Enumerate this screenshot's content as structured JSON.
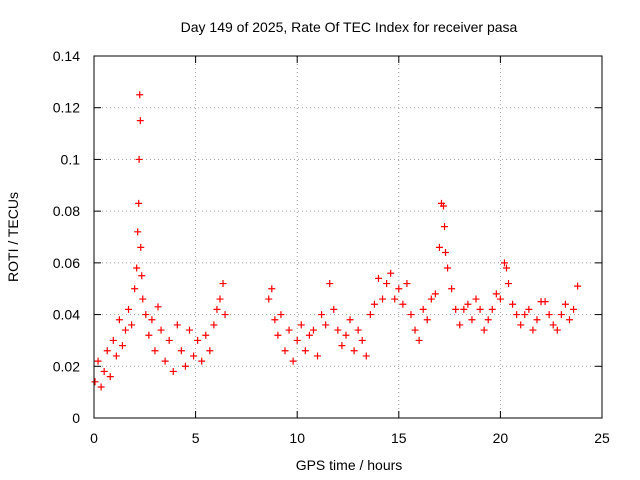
{
  "chart_data": {
    "type": "scatter",
    "title": "Day 149 of 2025, Rate Of TEC Index for receiver pasa",
    "xlabel": "GPS time / hours",
    "ylabel": "ROTI / TECUs",
    "xlim": [
      0,
      25
    ],
    "ylim": [
      0,
      0.14
    ],
    "xticks": [
      0,
      5,
      10,
      15,
      20,
      25
    ],
    "xtick_labels": [
      "0",
      "5",
      "10",
      "15",
      "20",
      "25"
    ],
    "yticks": [
      0,
      0.02,
      0.04,
      0.06,
      0.08,
      0.1,
      0.12,
      0.14
    ],
    "ytick_labels": [
      "0",
      "0.02",
      "0.04",
      "0.06",
      "0.08",
      "0.1",
      "0.12",
      "0.14"
    ],
    "grid": true,
    "marker": "plus",
    "marker_color": "#ff0000",
    "series": [
      {
        "name": "ROTI",
        "color": "#ff0000",
        "x": [
          0.05,
          0.2,
          0.35,
          0.5,
          0.65,
          0.8,
          0.95,
          1.1,
          1.25,
          1.4,
          1.55,
          1.7,
          1.85,
          2.0,
          2.1,
          2.15,
          2.2,
          2.22,
          2.25,
          2.28,
          2.3,
          2.35,
          2.4,
          2.55,
          2.7,
          2.85,
          3.0,
          3.15,
          3.3,
          3.5,
          3.7,
          3.9,
          4.1,
          4.3,
          4.5,
          4.7,
          4.9,
          5.1,
          5.3,
          5.5,
          5.7,
          5.9,
          6.05,
          6.2,
          6.35,
          6.45,
          8.6,
          8.75,
          8.9,
          9.05,
          9.2,
          9.4,
          9.6,
          9.8,
          10.0,
          10.2,
          10.4,
          10.6,
          10.8,
          11.0,
          11.2,
          11.4,
          11.6,
          11.8,
          12.0,
          12.2,
          12.4,
          12.6,
          12.8,
          13.0,
          13.2,
          13.4,
          13.6,
          13.8,
          14.0,
          14.2,
          14.4,
          14.6,
          14.8,
          15.0,
          15.2,
          15.4,
          15.6,
          15.8,
          16.0,
          16.2,
          16.4,
          16.6,
          16.8,
          17.0,
          17.1,
          17.2,
          17.25,
          17.3,
          17.4,
          17.6,
          17.8,
          18.0,
          18.2,
          18.4,
          18.6,
          18.8,
          19.0,
          19.2,
          19.4,
          19.6,
          19.8,
          20.0,
          20.2,
          20.3,
          20.4,
          20.6,
          20.8,
          21.0,
          21.2,
          21.4,
          21.6,
          21.8,
          22.0,
          22.2,
          22.4,
          22.6,
          22.8,
          23.0,
          23.2,
          23.4,
          23.6,
          23.8
        ],
        "y": [
          0.014,
          0.022,
          0.012,
          0.018,
          0.026,
          0.016,
          0.03,
          0.024,
          0.038,
          0.028,
          0.034,
          0.042,
          0.036,
          0.05,
          0.058,
          0.072,
          0.083,
          0.1,
          0.125,
          0.115,
          0.066,
          0.055,
          0.046,
          0.04,
          0.032,
          0.038,
          0.026,
          0.043,
          0.034,
          0.022,
          0.03,
          0.018,
          0.036,
          0.026,
          0.02,
          0.034,
          0.024,
          0.03,
          0.022,
          0.032,
          0.026,
          0.036,
          0.042,
          0.046,
          0.052,
          0.04,
          0.046,
          0.05,
          0.038,
          0.032,
          0.04,
          0.026,
          0.034,
          0.022,
          0.03,
          0.036,
          0.026,
          0.032,
          0.034,
          0.024,
          0.04,
          0.036,
          0.052,
          0.042,
          0.034,
          0.028,
          0.032,
          0.038,
          0.026,
          0.034,
          0.03,
          0.024,
          0.04,
          0.044,
          0.054,
          0.046,
          0.052,
          0.056,
          0.046,
          0.05,
          0.044,
          0.052,
          0.04,
          0.034,
          0.03,
          0.042,
          0.038,
          0.046,
          0.048,
          0.066,
          0.083,
          0.082,
          0.074,
          0.064,
          0.058,
          0.05,
          0.042,
          0.036,
          0.042,
          0.044,
          0.038,
          0.046,
          0.042,
          0.034,
          0.038,
          0.042,
          0.048,
          0.046,
          0.06,
          0.058,
          0.052,
          0.044,
          0.04,
          0.036,
          0.04,
          0.042,
          0.034,
          0.038,
          0.045,
          0.045,
          0.04,
          0.036,
          0.034,
          0.04,
          0.044,
          0.038,
          0.042,
          0.051
        ]
      }
    ]
  }
}
